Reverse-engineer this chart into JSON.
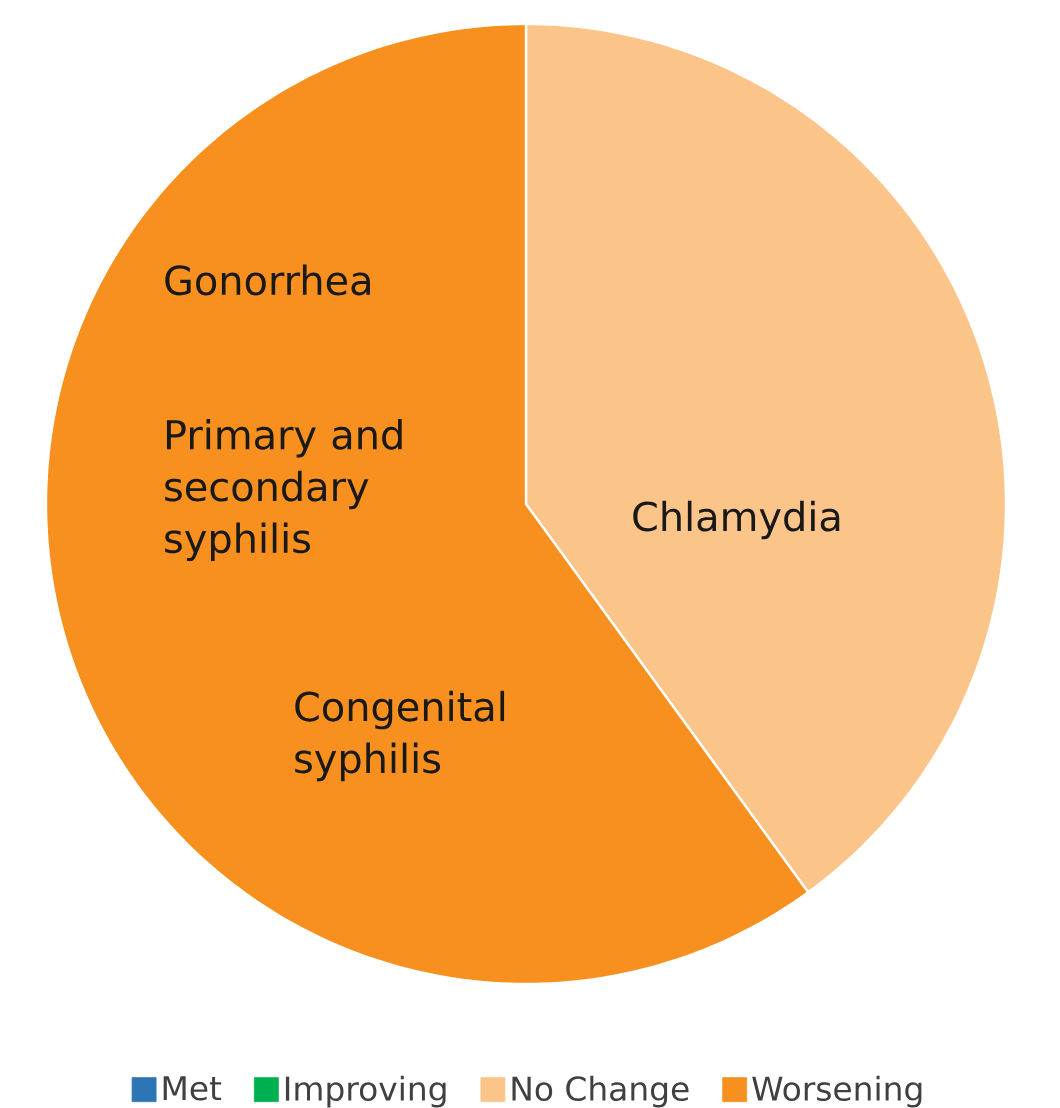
{
  "chart_data": {
    "type": "pie",
    "categories": [
      "Met",
      "Improving",
      "No Change",
      "Worsening"
    ],
    "values": [
      0,
      0,
      40,
      60
    ],
    "colors": [
      "#2e75b6",
      "#00b050",
      "#fbc58a",
      "#f7901e"
    ],
    "legend": "bottom",
    "annotations": [
      "Gonorrhea",
      "Primary and secondary syphilis",
      "Chlamydia",
      "Congenital syphilis"
    ]
  }
}
